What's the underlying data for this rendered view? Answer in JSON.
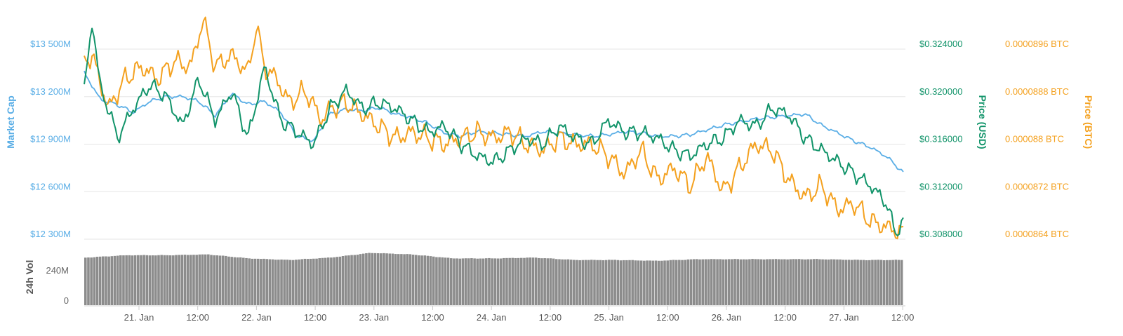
{
  "colors": {
    "market_cap": "#5aaee6",
    "price_usd": "#12946a",
    "price_btc": "#f4a11f",
    "volume": "#8c8c8c",
    "grid": "#e6e6e6",
    "axis_text": "#666666"
  },
  "axis_titles": {
    "left": "Market Cap",
    "usd": "Price (USD)",
    "btc": "Price (BTC)",
    "volume": "24h Vol"
  },
  "left_ticks": [
    "$13 500M",
    "$13 200M",
    "$12 900M",
    "$12 600M",
    "$12 300M"
  ],
  "usd_ticks": [
    "$0.324000",
    "$0.320000",
    "$0.316000",
    "$0.312000",
    "$0.308000"
  ],
  "btc_ticks": [
    "0.0000896 BTC",
    "0.0000888 BTC",
    "0.000088 BTC",
    "0.0000872 BTC",
    "0.0000864 BTC"
  ],
  "volume_ticks": [
    "240M",
    "0"
  ],
  "x_ticks": [
    "21. Jan",
    "12:00",
    "22. Jan",
    "12:00",
    "23. Jan",
    "12:00",
    "24. Jan",
    "12:00",
    "25. Jan",
    "12:00",
    "26. Jan",
    "12:00",
    "27. Jan",
    "12:00"
  ],
  "chart_data": {
    "type": "line",
    "x_range": [
      "20. Jan ~19:00",
      "28. Jan ~00:30"
    ],
    "left_axis": {
      "label": "Market Cap",
      "ylim": [
        12300,
        13500
      ],
      "unit": "$M"
    },
    "usd_axis": {
      "label": "Price (USD)",
      "ylim": [
        0.308,
        0.324
      ]
    },
    "btc_axis": {
      "label": "Price (BTC)",
      "ylim": [
        8.64e-05,
        8.96e-05
      ]
    },
    "volume_axis": {
      "label": "24h Vol",
      "ticks": [
        0,
        240
      ]
    },
    "grid": true,
    "series": [
      {
        "name": "Market Cap",
        "key": "market_cap",
        "axis": "left",
        "x": [
          0,
          0.02,
          0.04,
          0.06,
          0.08,
          0.1,
          0.12,
          0.14,
          0.16,
          0.18,
          0.2,
          0.22,
          0.24,
          0.26,
          0.28,
          0.3,
          0.32,
          0.34,
          0.36,
          0.38,
          0.4,
          0.42,
          0.44,
          0.46,
          0.48,
          0.5,
          0.52,
          0.54,
          0.56,
          0.58,
          0.6,
          0.62,
          0.64,
          0.66,
          0.68,
          0.7,
          0.72,
          0.74,
          0.76,
          0.78,
          0.8,
          0.82,
          0.84,
          0.86,
          0.88,
          0.9,
          0.92,
          0.94,
          0.96,
          0.98,
          1.0
        ],
        "values": [
          13350,
          13180,
          13150,
          13100,
          13170,
          13200,
          13200,
          13170,
          13080,
          13220,
          13150,
          13170,
          13100,
          12950,
          12920,
          13090,
          13120,
          13110,
          13130,
          13090,
          13070,
          13030,
          12970,
          12950,
          12980,
          12970,
          12960,
          12950,
          12980,
          12970,
          12960,
          12950,
          12960,
          12980,
          12970,
          12950,
          12950,
          12960,
          12990,
          13020,
          13040,
          13060,
          13070,
          13080,
          13090,
          13020,
          12970,
          12920,
          12880,
          12820,
          12720
        ]
      },
      {
        "name": "Price (USD)",
        "key": "price_usd",
        "axis": "usd",
        "x": [
          0,
          0.01,
          0.02,
          0.03,
          0.04,
          0.06,
          0.08,
          0.1,
          0.12,
          0.14,
          0.16,
          0.18,
          0.2,
          0.22,
          0.24,
          0.26,
          0.28,
          0.3,
          0.32,
          0.34,
          0.36,
          0.38,
          0.4,
          0.42,
          0.44,
          0.46,
          0.48,
          0.5,
          0.52,
          0.54,
          0.56,
          0.58,
          0.6,
          0.62,
          0.64,
          0.66,
          0.68,
          0.7,
          0.72,
          0.74,
          0.76,
          0.78,
          0.8,
          0.82,
          0.84,
          0.86,
          0.88,
          0.9,
          0.92,
          0.94,
          0.96,
          0.98,
          0.99,
          1.0
        ],
        "values": [
          0.3205,
          0.3265,
          0.3205,
          0.319,
          0.3165,
          0.319,
          0.321,
          0.32,
          0.3175,
          0.3215,
          0.318,
          0.3205,
          0.3165,
          0.3225,
          0.318,
          0.317,
          0.316,
          0.319,
          0.3205,
          0.319,
          0.3195,
          0.319,
          0.318,
          0.317,
          0.3175,
          0.316,
          0.315,
          0.3145,
          0.3155,
          0.3165,
          0.316,
          0.3175,
          0.3165,
          0.316,
          0.318,
          0.317,
          0.317,
          0.3165,
          0.3155,
          0.315,
          0.316,
          0.3165,
          0.318,
          0.3175,
          0.319,
          0.3185,
          0.3165,
          0.3155,
          0.3145,
          0.3135,
          0.3125,
          0.311,
          0.3085,
          0.3095
        ]
      },
      {
        "name": "Price (BTC)",
        "key": "price_btc",
        "axis": "btc",
        "x": [
          0,
          0.01,
          0.02,
          0.03,
          0.05,
          0.07,
          0.09,
          0.11,
          0.13,
          0.145,
          0.16,
          0.18,
          0.2,
          0.21,
          0.22,
          0.235,
          0.25,
          0.27,
          0.29,
          0.3,
          0.32,
          0.34,
          0.36,
          0.38,
          0.4,
          0.42,
          0.44,
          0.46,
          0.48,
          0.5,
          0.52,
          0.54,
          0.56,
          0.58,
          0.6,
          0.62,
          0.64,
          0.66,
          0.68,
          0.7,
          0.72,
          0.74,
          0.76,
          0.78,
          0.8,
          0.82,
          0.84,
          0.86,
          0.88,
          0.9,
          0.92,
          0.94,
          0.96,
          0.98,
          1.0
        ],
        "values": [
          8.94e-05,
          8.95e-05,
          8.9e-05,
          8.86e-05,
          8.91e-05,
          8.93e-05,
          8.91e-05,
          8.94e-05,
          8.93e-05,
          9.01e-05,
          8.93e-05,
          8.95e-05,
          8.92e-05,
          9e-05,
          8.93e-05,
          8.91e-05,
          8.87e-05,
          8.89e-05,
          8.84e-05,
          8.86e-05,
          8.87e-05,
          8.85e-05,
          8.83e-05,
          8.81e-05,
          8.82e-05,
          8.81e-05,
          8.8e-05,
          8.81e-05,
          8.82e-05,
          8.81e-05,
          8.82e-05,
          8.8e-05,
          8.79e-05,
          8.81e-05,
          8.8e-05,
          8.8e-05,
          8.78e-05,
          8.75e-05,
          8.79e-05,
          8.74e-05,
          8.76e-05,
          8.73e-05,
          8.78e-05,
          8.72e-05,
          8.76e-05,
          8.8e-05,
          8.79e-05,
          8.74e-05,
          8.71e-05,
          8.73e-05,
          8.69e-05,
          8.7e-05,
          8.67e-05,
          8.66e-05,
          8.65e-05
        ]
      },
      {
        "name": "24h Vol",
        "key": "volume",
        "axis": "volume",
        "x": [
          0,
          0.05,
          0.1,
          0.15,
          0.2,
          0.25,
          0.3,
          0.35,
          0.4,
          0.45,
          0.5,
          0.55,
          0.6,
          0.65,
          0.7,
          0.75,
          0.8,
          0.85,
          0.9,
          0.95,
          1.0
        ],
        "values": [
          300,
          315,
          315,
          320,
          295,
          285,
          300,
          330,
          320,
          295,
          295,
          300,
          285,
          285,
          280,
          290,
          290,
          290,
          290,
          285,
          285
        ]
      }
    ]
  }
}
